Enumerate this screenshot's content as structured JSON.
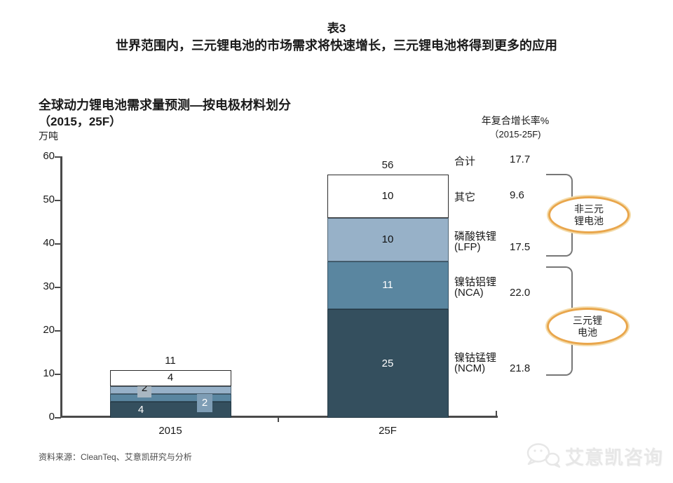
{
  "page": {
    "table_label": "表3",
    "headline": "世界范围内，三元锂电池的市场需求将快速增长，三元锂电池将得到更多的应用",
    "source": "资料来源：CleanTeq、艾意凯研究与分析",
    "watermark": "艾意凯咨询"
  },
  "chart_data": {
    "type": "stacked_bar",
    "title": "全球动力锂电池需求量预测—按电极材料划分",
    "title_line2": "（2015，25F）",
    "unit": "万吨",
    "categories": [
      "2015",
      "25F"
    ],
    "totals": [
      11,
      56
    ],
    "ylim": [
      0,
      60
    ],
    "yticks": [
      0,
      10,
      20,
      30,
      40,
      50,
      60
    ],
    "grid": false,
    "series": [
      {
        "name": "镍钴锰锂",
        "code": "(NCM)",
        "color": "#344f5e",
        "values": [
          4,
          25
        ],
        "cagr": "21.8"
      },
      {
        "name": "镍钴铝锂",
        "code": "(NCA)",
        "color": "#5a86a0",
        "values": [
          2,
          11
        ],
        "cagr": "22.0"
      },
      {
        "name": "磷酸铁锂",
        "code": "(LFP)",
        "color": "#97b1c8",
        "values": [
          2,
          10
        ],
        "cagr": "17.5"
      },
      {
        "name": "其它",
        "code": "",
        "color": "#ffffff",
        "values": [
          4,
          10
        ],
        "cagr": "9.6"
      }
    ],
    "total_row": {
      "label": "合计",
      "cagr": "17.7"
    },
    "cagr_header_line1": "年复合增长率%",
    "cagr_header_line2": "（2015-25F)",
    "group_annotations": [
      {
        "line1": "非三元",
        "line2": "锂电池",
        "members": [
          "其它",
          "磷酸铁锂(LFP)"
        ]
      },
      {
        "line1": "三元锂",
        "line2": "电池",
        "members": [
          "镍钴铝锂(NCA)",
          "镍钴锰锂(NCM)"
        ]
      }
    ],
    "colors": {
      "axis": "#4a4a4a",
      "bracket": "#777777",
      "annotation_ring": "#e9a64c"
    }
  }
}
